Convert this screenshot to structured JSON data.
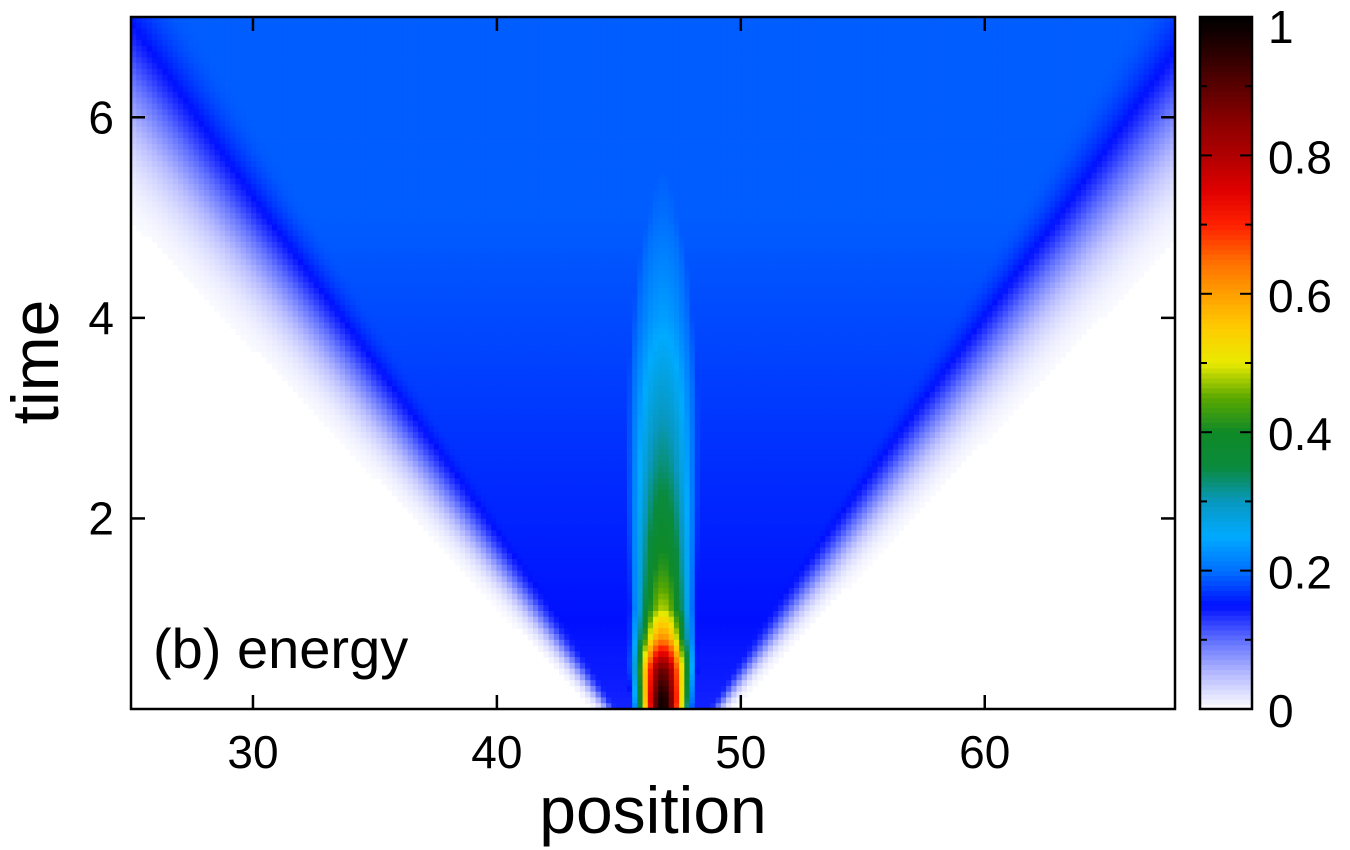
{
  "chart_data": {
    "type": "heatmap",
    "title": "",
    "annotation": "(b) energy",
    "xlabel": "position",
    "ylabel": "time",
    "xlim": [
      25,
      67.8
    ],
    "ylim": [
      0.1,
      7.0
    ],
    "xticks": [
      30,
      40,
      50,
      60
    ],
    "xtick_labels": [
      "30",
      "40",
      "50",
      "60"
    ],
    "yticks": [
      2,
      4,
      6
    ],
    "ytick_labels": [
      "2",
      "4",
      "6"
    ],
    "colorbar": {
      "range": [
        0,
        1
      ],
      "ticks": [
        0,
        0.2,
        0.4,
        0.6,
        0.8,
        1
      ],
      "tick_labels": [
        "0",
        "0.2",
        "0.4",
        "0.6",
        "0.8",
        "1"
      ],
      "minor_ticks": [
        0.1,
        0.3,
        0.5,
        0.7,
        0.9
      ],
      "colormap": [
        [
          0.0,
          "#ffffff"
        ],
        [
          0.05,
          "#b8bcff"
        ],
        [
          0.1,
          "#6070ff"
        ],
        [
          0.15,
          "#0010ff"
        ],
        [
          0.2,
          "#0070ff"
        ],
        [
          0.25,
          "#00aaff"
        ],
        [
          0.3,
          "#0898c0"
        ],
        [
          0.35,
          "#0a8a3c"
        ],
        [
          0.4,
          "#0f8a28"
        ],
        [
          0.45,
          "#5aa800"
        ],
        [
          0.5,
          "#e8ea00"
        ],
        [
          0.55,
          "#ffcc00"
        ],
        [
          0.6,
          "#ffa000"
        ],
        [
          0.65,
          "#ff6a00"
        ],
        [
          0.7,
          "#ff2000"
        ],
        [
          0.75,
          "#e00000"
        ],
        [
          0.8,
          "#b00000"
        ],
        [
          0.85,
          "#8a0000"
        ],
        [
          0.9,
          "#5a0000"
        ],
        [
          0.95,
          "#2a0000"
        ],
        [
          1.0,
          "#000000"
        ]
      ]
    },
    "field": {
      "description_of_values": "energy density versus position (x) and time (t)",
      "center_x": 46.8,
      "spread_rate_per_time": 2.55,
      "intensity_profile": [
        {
          "t": 0.2,
          "peak": 0.98
        },
        {
          "t": 0.5,
          "peak": 0.88
        },
        {
          "t": 0.8,
          "peak": 0.62
        },
        {
          "t": 1.1,
          "peak": 0.48
        },
        {
          "t": 1.5,
          "peak": 0.42
        },
        {
          "t": 2.0,
          "peak": 0.37
        },
        {
          "t": 2.5,
          "peak": 0.33
        },
        {
          "t": 3.0,
          "peak": 0.3
        },
        {
          "t": 3.5,
          "peak": 0.27
        },
        {
          "t": 4.0,
          "peak": 0.24
        },
        {
          "t": 5.0,
          "peak": 0.2
        },
        {
          "t": 6.0,
          "peak": 0.18
        },
        {
          "t": 7.0,
          "peak": 0.16
        }
      ]
    }
  }
}
